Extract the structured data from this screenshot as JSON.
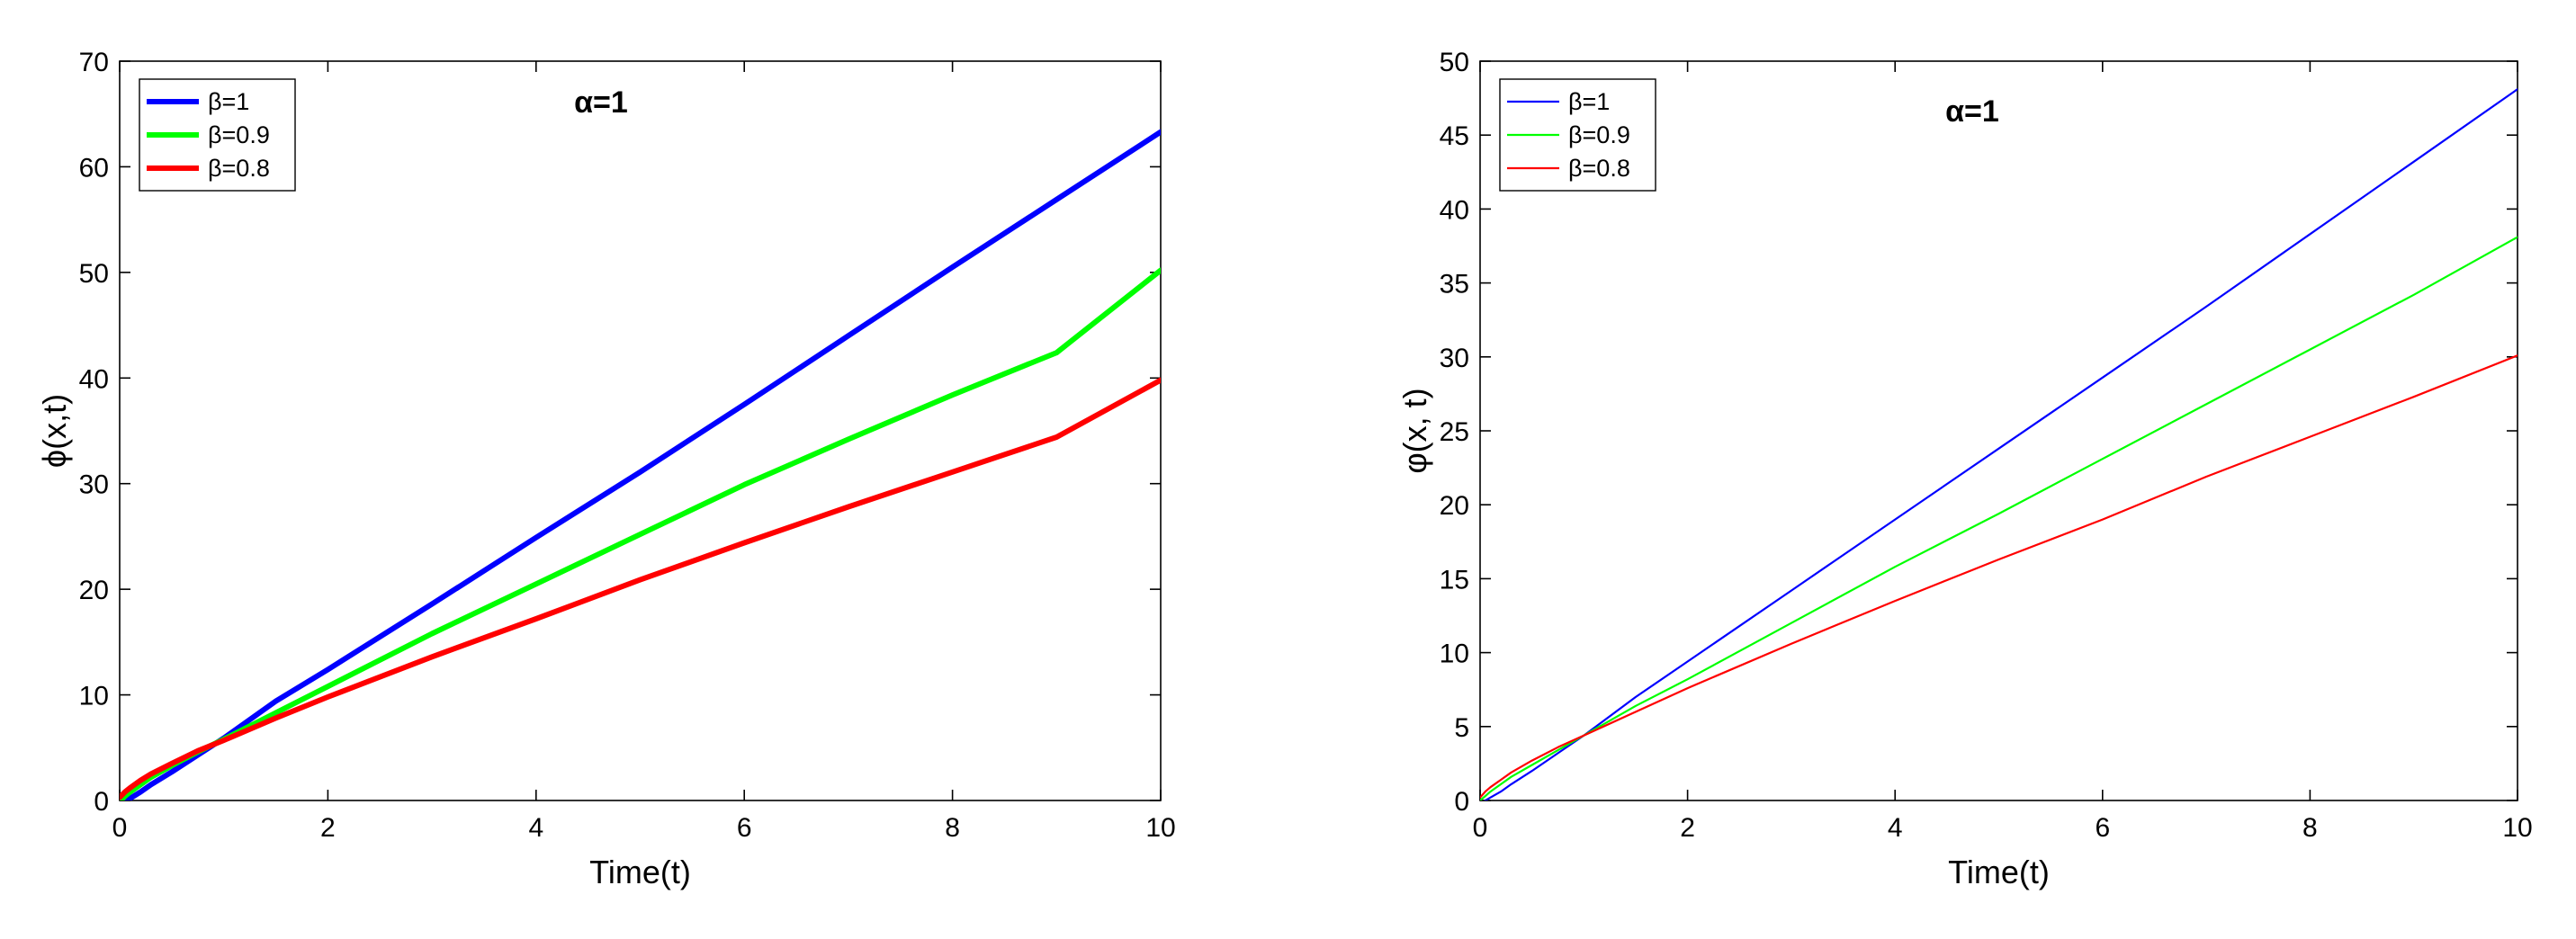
{
  "chart_data": [
    {
      "type": "line",
      "title": "",
      "annotation": "α=1",
      "xlabel": "Time(t)",
      "ylabel": "ϕ(x,t)",
      "xlim": [
        0,
        10
      ],
      "ylim": [
        0,
        70
      ],
      "xticks": [
        0,
        2,
        4,
        6,
        8,
        10
      ],
      "yticks": [
        0,
        10,
        20,
        30,
        40,
        50,
        60,
        70
      ],
      "legend_position": "top-left",
      "line_weight": "thick",
      "x": [
        0,
        0.05,
        0.1,
        0.2,
        0.3,
        0.5,
        0.75,
        1,
        1.5,
        2,
        3,
        4,
        5,
        6,
        7,
        8,
        9,
        10
      ],
      "series": [
        {
          "name": "β=1",
          "color": "#0000ff",
          "values": [
            -0.5,
            -0.1,
            0.2,
            0.8,
            1.5,
            2.7,
            4.3,
            5.9,
            9.4,
            12.4,
            18.6,
            24.9,
            31.1,
            37.5,
            44.0,
            50.5,
            56.9,
            63.3
          ]
        },
        {
          "name": "β=0.9",
          "color": "#00ff00",
          "values": [
            -0.1,
            0.4,
            0.8,
            1.5,
            2.2,
            3.3,
            4.6,
            5.8,
            8.3,
            10.8,
            15.8,
            20.5,
            25.2,
            29.9,
            34.2,
            38.4,
            42.4,
            50.2
          ]
        },
        {
          "name": "β=0.8",
          "color": "#ff0000",
          "values": [
            0.3,
            0.8,
            1.2,
            1.9,
            2.5,
            3.5,
            4.7,
            5.7,
            7.8,
            9.8,
            13.6,
            17.2,
            20.9,
            24.4,
            27.8,
            31.1,
            34.4,
            39.8
          ]
        }
      ]
    },
    {
      "type": "line",
      "title": "",
      "annotation": "α=1",
      "xlabel": "Time(t)",
      "ylabel": "φ(x, t)",
      "xlim": [
        0,
        10
      ],
      "ylim": [
        0,
        50
      ],
      "xticks": [
        0,
        2,
        4,
        6,
        8,
        10
      ],
      "yticks": [
        0,
        5,
        10,
        15,
        20,
        25,
        30,
        35,
        40,
        45,
        50
      ],
      "legend_position": "top-left",
      "line_weight": "thin",
      "x": [
        0,
        0.05,
        0.1,
        0.2,
        0.3,
        0.5,
        0.75,
        1,
        1.5,
        2,
        3,
        4,
        5,
        6,
        7,
        8,
        9,
        10
      ],
      "series": [
        {
          "name": "β=1",
          "color": "#0000ff",
          "values": [
            -0.3,
            0.0,
            0.2,
            0.6,
            1.1,
            2.0,
            3.2,
            4.4,
            7.0,
            9.4,
            14.2,
            19.0,
            23.8,
            28.6,
            33.4,
            38.3,
            43.2,
            48.1
          ]
        },
        {
          "name": "β=0.9",
          "color": "#00ff00",
          "values": [
            0.0,
            0.3,
            0.6,
            1.1,
            1.6,
            2.4,
            3.4,
            4.4,
            6.4,
            8.2,
            12.0,
            15.8,
            19.4,
            23.1,
            26.8,
            30.5,
            34.2,
            38.1
          ]
        },
        {
          "name": "β=0.8",
          "color": "#ff0000",
          "values": [
            0.2,
            0.6,
            0.9,
            1.4,
            1.9,
            2.7,
            3.6,
            4.4,
            6.0,
            7.6,
            10.6,
            13.5,
            16.3,
            19.0,
            21.9,
            24.6,
            27.3,
            30.1
          ]
        }
      ]
    }
  ]
}
